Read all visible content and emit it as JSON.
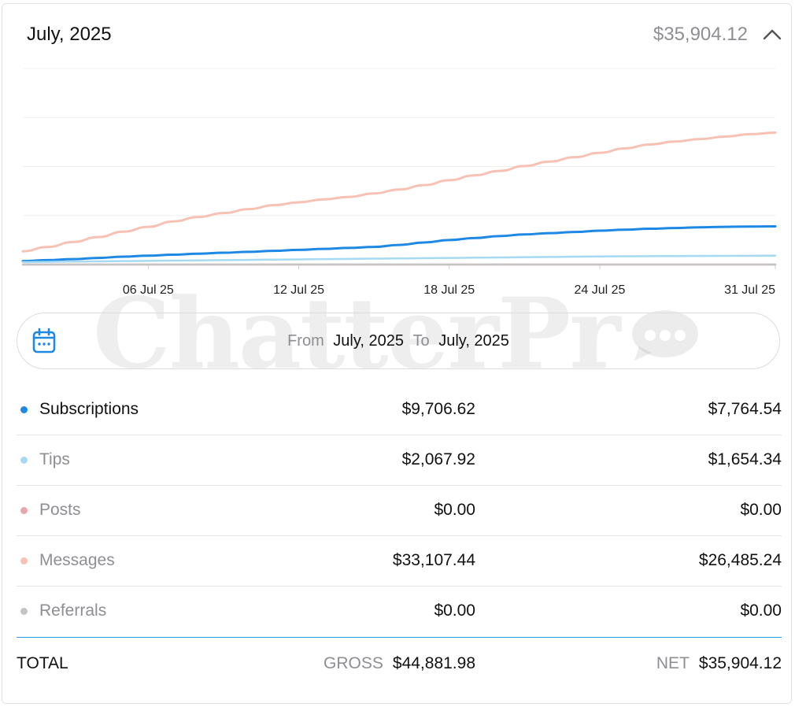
{
  "header": {
    "title": "July, 2025",
    "total": "$35,904.12",
    "collapse_icon": "chevron-up-icon"
  },
  "watermark": "ChatterPr",
  "chart_data": {
    "type": "line",
    "x": [
      "01 Jul 25",
      "02 Jul 25",
      "03 Jul 25",
      "04 Jul 25",
      "05 Jul 25",
      "06 Jul 25",
      "07 Jul 25",
      "08 Jul 25",
      "09 Jul 25",
      "10 Jul 25",
      "11 Jul 25",
      "12 Jul 25",
      "13 Jul 25",
      "14 Jul 25",
      "15 Jul 25",
      "16 Jul 25",
      "17 Jul 25",
      "18 Jul 25",
      "19 Jul 25",
      "20 Jul 25",
      "21 Jul 25",
      "22 Jul 25",
      "23 Jul 25",
      "24 Jul 25",
      "25 Jul 25",
      "26 Jul 25",
      "27 Jul 25",
      "28 Jul 25",
      "29 Jul 25",
      "30 Jul 25",
      "31 Jul 25"
    ],
    "xticks": [
      "06 Jul 25",
      "12 Jul 25",
      "18 Jul 25",
      "24 Jul 25",
      "31 Jul 25"
    ],
    "ylim": [
      0,
      40000
    ],
    "grid": true,
    "legend": "none",
    "series": [
      {
        "name": "Messages",
        "color": "#f7c1b4",
        "values": [
          2700,
          3600,
          4600,
          5600,
          6700,
          7700,
          8800,
          9700,
          10500,
          11300,
          12100,
          12700,
          13300,
          13800,
          14500,
          15300,
          16200,
          17200,
          18200,
          19100,
          20100,
          21000,
          21900,
          22800,
          23700,
          24500,
          25100,
          25600,
          26100,
          26600,
          26900
        ]
      },
      {
        "name": "Subscriptions",
        "color": "#1e88e5",
        "values": [
          700,
          900,
          1100,
          1350,
          1600,
          1800,
          2000,
          2200,
          2400,
          2600,
          2800,
          3000,
          3200,
          3400,
          3600,
          4000,
          4500,
          5000,
          5400,
          5800,
          6150,
          6400,
          6650,
          6900,
          7100,
          7300,
          7450,
          7600,
          7700,
          7750,
          7800
        ]
      },
      {
        "name": "Tips",
        "color": "#a6d9f2",
        "values": [
          500,
          550,
          600,
          650,
          700,
          750,
          800,
          850,
          900,
          950,
          1000,
          1050,
          1100,
          1150,
          1200,
          1250,
          1300,
          1350,
          1400,
          1450,
          1500,
          1550,
          1600,
          1650,
          1680,
          1710,
          1730,
          1750,
          1770,
          1790,
          1810
        ]
      },
      {
        "name": "Posts",
        "color": "#e8a6ad",
        "values": [
          0,
          0,
          0,
          0,
          0,
          0,
          0,
          0,
          0,
          0,
          0,
          0,
          0,
          0,
          0,
          0,
          0,
          0,
          0,
          0,
          0,
          0,
          0,
          0,
          0,
          0,
          0,
          0,
          0,
          0,
          0
        ]
      },
      {
        "name": "Referrals",
        "color": "#c4c4c4",
        "values": [
          0,
          0,
          0,
          0,
          0,
          0,
          0,
          0,
          0,
          0,
          0,
          0,
          0,
          0,
          0,
          0,
          0,
          0,
          0,
          0,
          0,
          0,
          0,
          0,
          0,
          0,
          0,
          0,
          0,
          0,
          0
        ]
      }
    ]
  },
  "range": {
    "icon": "calendar-icon",
    "from_label": "From",
    "from_value": "July, 2025",
    "to_label": "To",
    "to_value": "July, 2025"
  },
  "rows": [
    {
      "label": "Subscriptions",
      "gross": "$9,706.62",
      "net": "$7,764.54",
      "color": "#1e88e5",
      "label_color": "#111111"
    },
    {
      "label": "Tips",
      "gross": "$2,067.92",
      "net": "$1,654.34",
      "color": "#a6d9f2",
      "label_color": "#8e8e93"
    },
    {
      "label": "Posts",
      "gross": "$0.00",
      "net": "$0.00",
      "color": "#e8a6ad",
      "label_color": "#8e8e93"
    },
    {
      "label": "Messages",
      "gross": "$33,107.44",
      "net": "$26,485.24",
      "color": "#f7c1b4",
      "label_color": "#8e8e93"
    },
    {
      "label": "Referrals",
      "gross": "$0.00",
      "net": "$0.00",
      "color": "#c4c4c4",
      "label_color": "#8e8e93"
    }
  ],
  "totals": {
    "label": "TOTAL",
    "gross_label": "GROSS",
    "gross": "$44,881.98",
    "net_label": "NET",
    "net": "$35,904.12"
  }
}
